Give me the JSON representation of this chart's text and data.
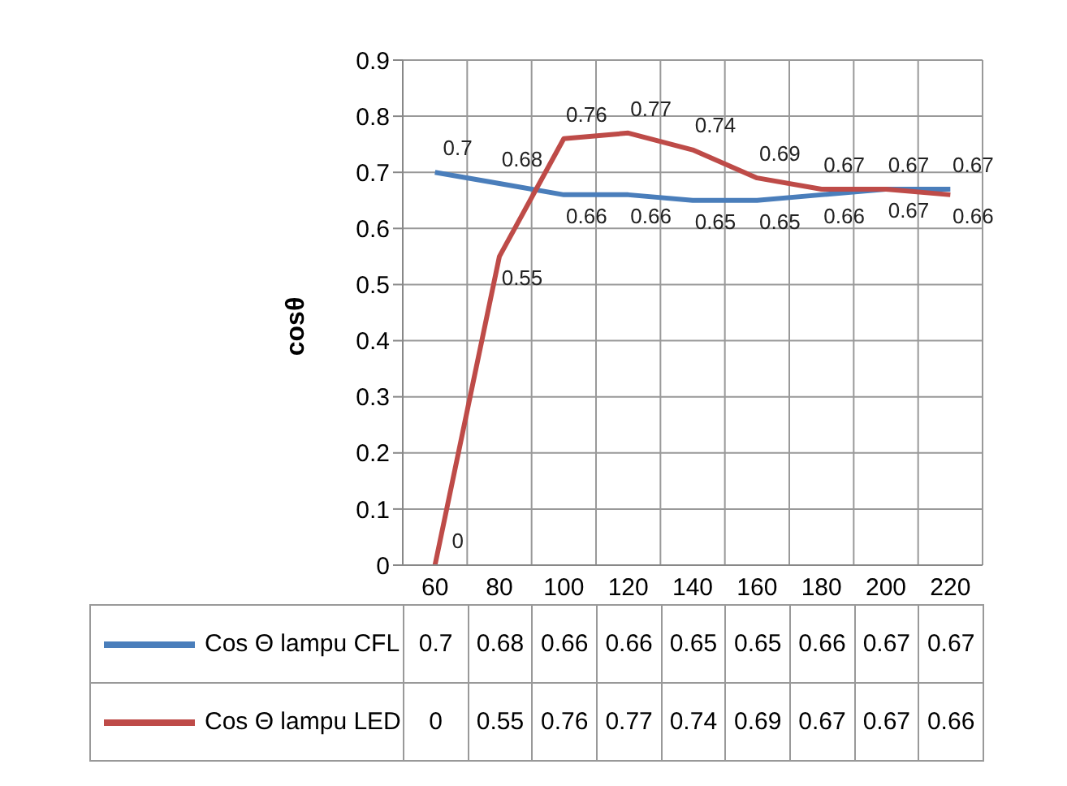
{
  "chart_data": {
    "type": "line",
    "ylabel": "cosθ",
    "categories": [
      "60",
      "80",
      "100",
      "120",
      "140",
      "160",
      "180",
      "200",
      "220"
    ],
    "series": [
      {
        "name": "Cos Θ lampu CFL",
        "color": "#4a7ebb",
        "values": [
          0.7,
          0.68,
          0.66,
          0.66,
          0.65,
          0.65,
          0.66,
          0.67,
          0.67
        ]
      },
      {
        "name": "Cos Θ lampu LED",
        "color": "#be4b48",
        "values": [
          0,
          0.55,
          0.76,
          0.77,
          0.74,
          0.69,
          0.67,
          0.67,
          0.66
        ]
      }
    ],
    "annotations": [
      {
        "text": "0.7",
        "x": "60",
        "y": 0.7
      },
      {
        "text": "0.68",
        "x": "80",
        "y": 0.68
      },
      {
        "text": "0.66",
        "x": "100",
        "y": 0.66
      },
      {
        "text": "0.66",
        "x": "120",
        "y": 0.66
      },
      {
        "text": "0.65",
        "x": "140",
        "y": 0.65
      },
      {
        "text": "0.65",
        "x": "160",
        "y": 0.65
      },
      {
        "text": "0.66",
        "x": "180",
        "y": 0.66
      },
      {
        "text": "0.67",
        "x": "200",
        "y": 0.67
      },
      {
        "text": "0.67",
        "x": "220",
        "y": 0.67
      },
      {
        "text": "0",
        "x": "60",
        "y": 0
      },
      {
        "text": "0.55",
        "x": "80",
        "y": 0.55
      },
      {
        "text": "0.76",
        "x": "100",
        "y": 0.76
      },
      {
        "text": "0.77",
        "x": "120",
        "y": 0.77
      },
      {
        "text": "0.74",
        "x": "140",
        "y": 0.74
      },
      {
        "text": "0.69",
        "x": "160",
        "y": 0.69
      },
      {
        "text": "0.67",
        "x": "180",
        "y": 0.67
      },
      {
        "text": "0.67",
        "x": "200",
        "y": 0.67
      },
      {
        "text": "0.66",
        "x": "220",
        "y": 0.66
      }
    ],
    "ylim": [
      0,
      0.9
    ],
    "yticks": [
      0,
      0.1,
      0.2,
      0.3,
      0.4,
      0.5,
      0.6,
      0.7,
      0.8,
      0.9
    ],
    "grid": true,
    "data_labels": true,
    "legend": "bottom",
    "marker": "none",
    "line_style": "solid"
  }
}
